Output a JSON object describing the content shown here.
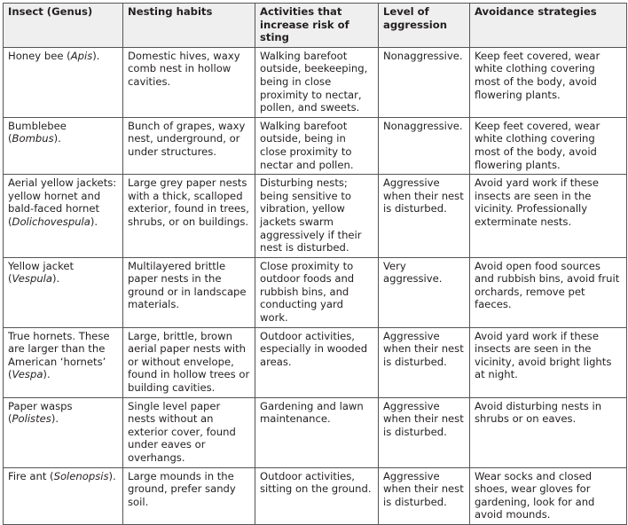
{
  "table": {
    "header": [
      "Insect (Genus)",
      "Nesting habits",
      "Activities that increase risk of sting",
      "Level of aggression",
      "Avoidance strategies"
    ],
    "rows": [
      [
        {
          "before": "Honey bee (",
          "genus": "Apis",
          "after": ")."
        },
        "Domestic hives, waxy comb nest in hollow cavities.",
        "Walking barefoot outside, beekeeping, being in close proximity to nectar, pollen, and sweets.",
        "Nonaggressive.",
        "Keep feet covered, wear white clothing covering most of the body, avoid flowering plants."
      ],
      [
        {
          "before": "Bumblebee (",
          "genus": "Bombus",
          "after": ")."
        },
        "Bunch of grapes, waxy nest, underground, or under structures.",
        "Walking barefoot outside, being in close proximity to nectar and pollen.",
        "Nonaggressive.",
        "Keep feet covered, wear white clothing covering most of the body, avoid flowering plants."
      ],
      [
        {
          "before": "Aerial yellow jackets: yellow hornet and bald-faced hornet (",
          "genus": "Dolichovespula",
          "after": ")."
        },
        "Large grey paper nests with a thick, scalloped exterior, found in trees, shrubs, or on buildings.",
        "Disturbing nests; being sensitive to vibration, yellow jackets swarm aggressively if their nest is disturbed.",
        "Aggressive when their nest is disturbed.",
        "Avoid yard work if these insects are seen in the vicinity. Professionally exterminate nests."
      ],
      [
        {
          "before": "Yellow jacket (",
          "genus": "Vespula",
          "after": ")."
        },
        "Multilayered brittle paper nests in the ground or in landscape materials.",
        "Close proximity to outdoor foods and rubbish bins, and conducting yard work.",
        "Very aggressive.",
        "Avoid open food sources and rubbish bins, avoid fruit orchards, remove pet faeces."
      ],
      [
        {
          "before": "True hornets. These are larger than the American ‘hornets’ (",
          "genus": "Vespa",
          "after": ")."
        },
        "Large, brittle, brown aerial paper nests with or without envelope, found in hollow trees or building cavities.",
        "Outdoor activities, especially in wooded areas.",
        "Aggressive when their nest is disturbed.",
        "Avoid yard work if these insects are seen in the vicinity, avoid bright lights at night."
      ],
      [
        {
          "before": "Paper wasps (",
          "genus": "Polistes",
          "after": ")."
        },
        "Single level paper nests without an exterior cover, found under eaves or overhangs.",
        "Gardening and lawn maintenance.",
        "Aggressive when their nest is disturbed.",
        "Avoid disturbing nests in shrubs or on eaves."
      ],
      [
        {
          "before": "Fire ant (",
          "genus": "Solenopsis",
          "after": ")."
        },
        "Large mounds in the ground, prefer sandy soil.",
        "Outdoor activities, sitting on the ground.",
        "Aggressive when their nest is disturbed.",
        "Wear socks and closed shoes, wear gloves for gardening, look for and avoid mounds."
      ]
    ]
  }
}
